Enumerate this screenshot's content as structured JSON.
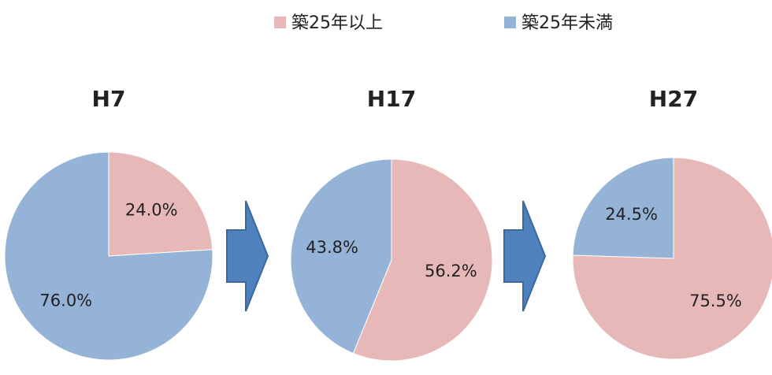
{
  "legend": [
    {
      "name": "築25年以上",
      "color": "#e6b9b8"
    },
    {
      "name": "築25年未満",
      "color": "#95b3d7"
    }
  ],
  "chart_data": [
    {
      "type": "pie",
      "title": "H7",
      "values": [
        24.0,
        76.0
      ],
      "value_labels": [
        "24.0%",
        "76.0%"
      ]
    },
    {
      "type": "pie",
      "title": "H17",
      "values": [
        56.2,
        43.8
      ],
      "value_labels": [
        "56.2%",
        "43.8%"
      ]
    },
    {
      "type": "pie",
      "title": "H27",
      "values": [
        75.5,
        24.5
      ],
      "value_labels": [
        "75.5%",
        "24.5%"
      ]
    }
  ]
}
